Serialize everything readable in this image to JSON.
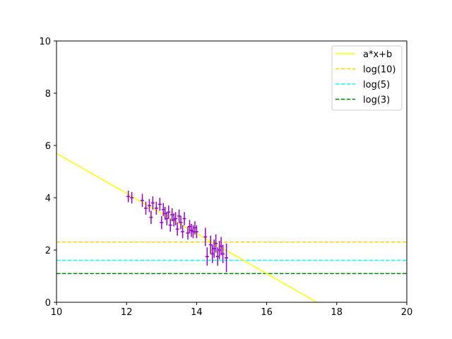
{
  "chart_data": {
    "type": "scatter",
    "title": "",
    "xlabel": "",
    "ylabel": "",
    "xlim": [
      10,
      20
    ],
    "ylim": [
      0,
      10
    ],
    "xticks": [
      10,
      12,
      14,
      16,
      18,
      20
    ],
    "yticks": [
      0,
      2,
      4,
      6,
      8,
      10
    ],
    "grid": false,
    "legend_position": "top-right",
    "errorbar_data": {
      "color": "#9400d3",
      "points": [
        {
          "x": 12.05,
          "y": 4.05,
          "xerr": 0.05,
          "yerr": 0.22
        },
        {
          "x": 12.15,
          "y": 4.0,
          "xerr": 0.05,
          "yerr": 0.22
        },
        {
          "x": 12.45,
          "y": 3.9,
          "xerr": 0.05,
          "yerr": 0.25
        },
        {
          "x": 12.55,
          "y": 3.6,
          "xerr": 0.05,
          "yerr": 0.25
        },
        {
          "x": 12.65,
          "y": 3.7,
          "xerr": 0.05,
          "yerr": 0.25
        },
        {
          "x": 12.7,
          "y": 3.25,
          "xerr": 0.05,
          "yerr": 0.25
        },
        {
          "x": 12.75,
          "y": 3.8,
          "xerr": 0.05,
          "yerr": 0.25
        },
        {
          "x": 12.85,
          "y": 3.6,
          "xerr": 0.05,
          "yerr": 0.25
        },
        {
          "x": 12.95,
          "y": 3.75,
          "xerr": 0.05,
          "yerr": 0.25
        },
        {
          "x": 13.0,
          "y": 3.05,
          "xerr": 0.05,
          "yerr": 0.25
        },
        {
          "x": 13.05,
          "y": 3.55,
          "xerr": 0.05,
          "yerr": 0.25
        },
        {
          "x": 13.1,
          "y": 3.4,
          "xerr": 0.05,
          "yerr": 0.25
        },
        {
          "x": 13.15,
          "y": 3.2,
          "xerr": 0.05,
          "yerr": 0.25
        },
        {
          "x": 13.2,
          "y": 3.45,
          "xerr": 0.05,
          "yerr": 0.25
        },
        {
          "x": 13.25,
          "y": 2.95,
          "xerr": 0.05,
          "yerr": 0.25
        },
        {
          "x": 13.3,
          "y": 3.35,
          "xerr": 0.05,
          "yerr": 0.25
        },
        {
          "x": 13.35,
          "y": 3.15,
          "xerr": 0.05,
          "yerr": 0.25
        },
        {
          "x": 13.4,
          "y": 3.2,
          "xerr": 0.05,
          "yerr": 0.25
        },
        {
          "x": 13.45,
          "y": 2.8,
          "xerr": 0.05,
          "yerr": 0.25
        },
        {
          "x": 13.5,
          "y": 3.3,
          "xerr": 0.05,
          "yerr": 0.25
        },
        {
          "x": 13.55,
          "y": 3.05,
          "xerr": 0.05,
          "yerr": 0.25
        },
        {
          "x": 13.6,
          "y": 2.7,
          "xerr": 0.05,
          "yerr": 0.25
        },
        {
          "x": 13.65,
          "y": 3.2,
          "xerr": 0.05,
          "yerr": 0.25
        },
        {
          "x": 13.75,
          "y": 2.65,
          "xerr": 0.05,
          "yerr": 0.25
        },
        {
          "x": 13.8,
          "y": 2.9,
          "xerr": 0.05,
          "yerr": 0.25
        },
        {
          "x": 13.85,
          "y": 2.75,
          "xerr": 0.05,
          "yerr": 0.25
        },
        {
          "x": 13.9,
          "y": 2.7,
          "xerr": 0.05,
          "yerr": 0.25
        },
        {
          "x": 13.95,
          "y": 2.85,
          "xerr": 0.05,
          "yerr": 0.25
        },
        {
          "x": 14.0,
          "y": 2.7,
          "xerr": 0.05,
          "yerr": 0.25
        },
        {
          "x": 14.25,
          "y": 2.5,
          "xerr": 0.05,
          "yerr": 0.35
        },
        {
          "x": 14.3,
          "y": 1.75,
          "xerr": 0.05,
          "yerr": 0.35
        },
        {
          "x": 14.4,
          "y": 2.2,
          "xerr": 0.05,
          "yerr": 0.35
        },
        {
          "x": 14.45,
          "y": 1.85,
          "xerr": 0.05,
          "yerr": 0.35
        },
        {
          "x": 14.5,
          "y": 2.05,
          "xerr": 0.05,
          "yerr": 0.35
        },
        {
          "x": 14.55,
          "y": 2.25,
          "xerr": 0.05,
          "yerr": 0.35
        },
        {
          "x": 14.6,
          "y": 1.75,
          "xerr": 0.05,
          "yerr": 0.35
        },
        {
          "x": 14.65,
          "y": 2.0,
          "xerr": 0.05,
          "yerr": 0.35
        },
        {
          "x": 14.7,
          "y": 2.15,
          "xerr": 0.05,
          "yerr": 0.35
        },
        {
          "x": 14.75,
          "y": 1.85,
          "xerr": 0.05,
          "yerr": 0.35
        },
        {
          "x": 14.85,
          "y": 1.7,
          "xerr": 0.05,
          "yerr": 0.55
        }
      ]
    },
    "series": [
      {
        "name": "a*x+b",
        "kind": "line",
        "style": "solid",
        "color": "#ffff00",
        "x": [
          10,
          17.43
        ],
        "y": [
          5.7,
          0
        ]
      },
      {
        "name": "log(10)",
        "kind": "hline",
        "style": "dashed",
        "color": "#ffd700",
        "y": 2.303
      },
      {
        "name": "log(5)",
        "kind": "hline",
        "style": "dashed",
        "color": "#00ffff",
        "y": 1.609
      },
      {
        "name": "log(3)",
        "kind": "hline",
        "style": "dashed",
        "color": "#008000",
        "y": 1.099
      }
    ]
  }
}
